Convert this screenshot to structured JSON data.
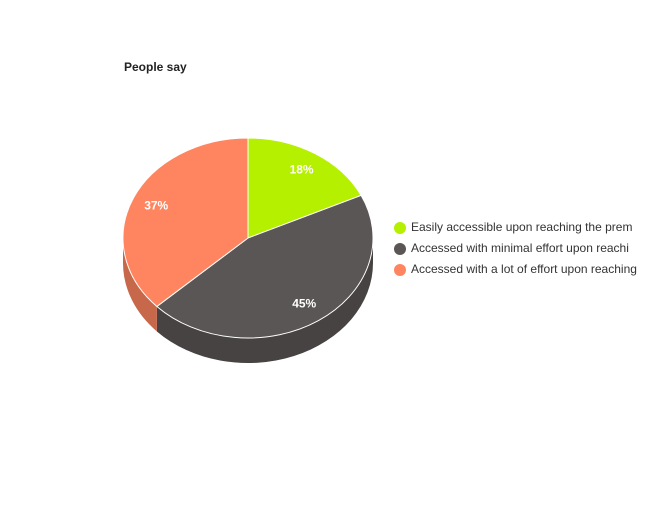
{
  "chart_data": {
    "type": "pie3d",
    "title": "People say",
    "categories": [
      "Easily accessible upon reaching the prem",
      "Accessed with minimal effort upon reachi",
      "Accessed with a lot of effort upon reaching"
    ],
    "values": [
      18,
      45,
      37
    ],
    "value_labels": [
      "18%",
      "45%",
      "37%"
    ],
    "colors": [
      "#b5f000",
      "#5a5655",
      "#ff8560"
    ]
  }
}
